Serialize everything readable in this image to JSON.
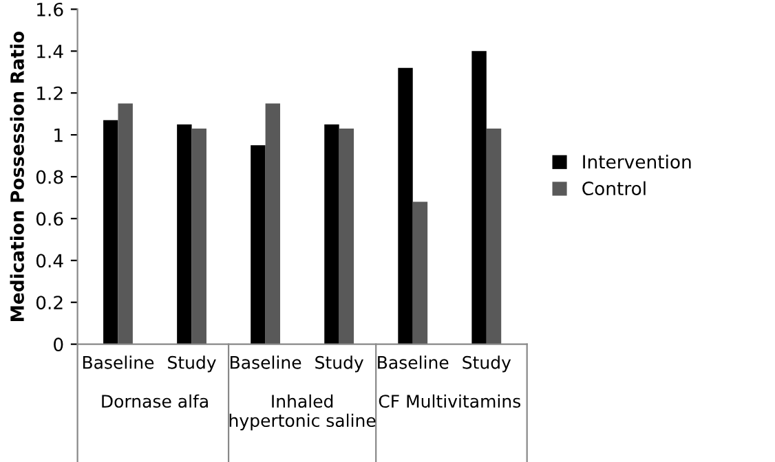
{
  "chart_data": {
    "type": "bar",
    "ylabel": "Medication Possession Ratio",
    "categories": [
      "Baseline",
      "Study",
      "Baseline",
      "Study",
      "Baseline",
      "Study"
    ],
    "series": [
      {
        "name": "Intervention",
        "color": "#000000",
        "values": [
          1.07,
          1.05,
          0.95,
          1.05,
          1.32,
          1.4
        ]
      },
      {
        "name": "Control",
        "color": "#595959",
        "values": [
          1.15,
          1.03,
          1.15,
          1.03,
          0.68,
          1.03
        ]
      }
    ],
    "annotations": [
      "Dornase alfa",
      "Inhaled\nhypertonic saline",
      "CF Multivitamins"
    ],
    "ylim": [
      0,
      1.6
    ],
    "yticks": [
      0,
      0.2,
      0.4,
      0.6,
      0.8,
      1,
      1.2,
      1.4,
      1.6
    ],
    "grid": false,
    "legend": "right"
  }
}
